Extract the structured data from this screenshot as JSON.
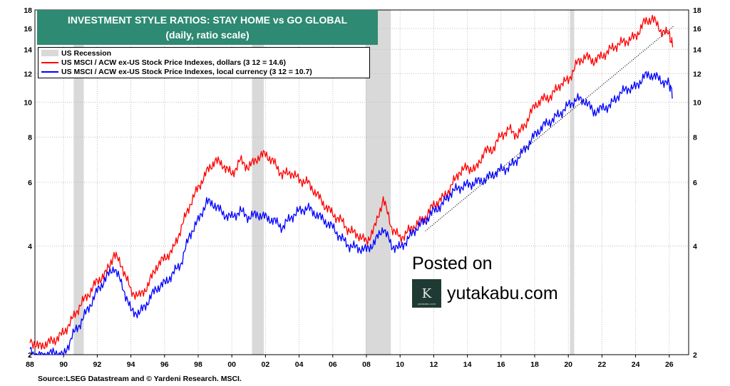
{
  "chart_data": {
    "type": "line",
    "title": "INVESTMENT STYLE RATIOS: STAY HOME vs GO GLOBAL",
    "subtitle": "(daily, ratio scale)",
    "y_scale": "log",
    "ylim": [
      2,
      18
    ],
    "xlim": [
      1988,
      2026.8
    ],
    "y_ticks": [
      2,
      4,
      6,
      8,
      10,
      12,
      14,
      16,
      18
    ],
    "x_ticks": [
      1988,
      1990,
      1992,
      1994,
      1996,
      1998,
      2000,
      2002,
      2004,
      2006,
      2008,
      2010,
      2012,
      2014,
      2016,
      2018,
      2020,
      2022,
      2024,
      2026
    ],
    "x_tick_labels": [
      "88",
      "90",
      "92",
      "94",
      "96",
      "98",
      "00",
      "02",
      "04",
      "06",
      "08",
      "10",
      "12",
      "14",
      "16",
      "18",
      "20",
      "22",
      "24",
      "26"
    ],
    "grid": true,
    "legend_position": "top-left",
    "recessions": [
      [
        1990.6,
        1991.2
      ],
      [
        2001.2,
        2001.9
      ],
      [
        2007.95,
        2009.45
      ],
      [
        2020.1,
        2020.35
      ]
    ],
    "recession_label": "US Recession",
    "series": [
      {
        "name": "US MSCI / ACW ex-US Stock Price Indexes, dollars (3 12 = 14.6)",
        "color": "#ff0000",
        "x": [
          1988.0,
          1988.5,
          1989.0,
          1989.5,
          1990.0,
          1990.5,
          1991.0,
          1991.5,
          1992.0,
          1992.5,
          1993.0,
          1993.5,
          1994.0,
          1994.5,
          1995.0,
          1995.5,
          1996.0,
          1996.5,
          1997.0,
          1997.5,
          1998.0,
          1998.5,
          1999.0,
          1999.5,
          2000.0,
          2000.5,
          2001.0,
          2001.5,
          2002.0,
          2002.5,
          2003.0,
          2003.5,
          2004.0,
          2004.5,
          2005.0,
          2005.5,
          2006.0,
          2006.5,
          2007.0,
          2007.5,
          2008.0,
          2008.5,
          2009.0,
          2009.5,
          2010.0,
          2010.5,
          2011.0,
          2011.5,
          2012.0,
          2012.5,
          2013.0,
          2013.5,
          2014.0,
          2014.5,
          2015.0,
          2015.5,
          2016.0,
          2016.5,
          2017.0,
          2017.5,
          2018.0,
          2018.5,
          2019.0,
          2019.5,
          2020.0,
          2020.5,
          2021.0,
          2021.5,
          2022.0,
          2022.5,
          2023.0,
          2023.5,
          2024.0,
          2024.5,
          2025.0,
          2025.5,
          2026.0,
          2026.2
        ],
        "values": [
          2.2,
          2.1,
          2.15,
          2.2,
          2.3,
          2.5,
          2.75,
          2.95,
          3.2,
          3.35,
          3.8,
          3.5,
          3.0,
          2.9,
          3.1,
          3.5,
          3.7,
          3.9,
          4.5,
          5.2,
          5.8,
          6.4,
          6.9,
          6.7,
          6.3,
          6.9,
          6.6,
          7.0,
          7.2,
          6.8,
          6.3,
          6.4,
          6.1,
          6.0,
          5.6,
          5.2,
          4.9,
          4.7,
          4.4,
          4.3,
          4.1,
          4.5,
          5.4,
          4.5,
          4.2,
          4.4,
          4.6,
          4.8,
          5.2,
          5.4,
          5.8,
          6.4,
          6.6,
          6.5,
          7.3,
          7.4,
          8.1,
          8.4,
          8.1,
          8.8,
          9.8,
          10.2,
          10.4,
          11.2,
          11.5,
          12.8,
          13.4,
          13.0,
          13.4,
          14.0,
          14.5,
          14.8,
          15.2,
          16.6,
          17.1,
          15.8,
          15.4,
          14.3
        ]
      },
      {
        "name": "US MSCI / ACW ex-US Stock Price Indexes, local currency (3 12 = 10.7)",
        "color": "#0000ff",
        "x": [
          1988.0,
          1988.5,
          1989.0,
          1989.5,
          1990.0,
          1990.5,
          1991.0,
          1991.5,
          1992.0,
          1992.5,
          1993.0,
          1993.5,
          1994.0,
          1994.5,
          1995.0,
          1995.5,
          1996.0,
          1996.5,
          1997.0,
          1997.5,
          1998.0,
          1998.5,
          1999.0,
          1999.5,
          2000.0,
          2000.5,
          2001.0,
          2001.5,
          2002.0,
          2002.5,
          2003.0,
          2003.5,
          2004.0,
          2004.5,
          2005.0,
          2005.5,
          2006.0,
          2006.5,
          2007.0,
          2007.5,
          2008.0,
          2008.5,
          2009.0,
          2009.5,
          2010.0,
          2010.5,
          2011.0,
          2011.5,
          2012.0,
          2012.5,
          2013.0,
          2013.5,
          2014.0,
          2014.5,
          2015.0,
          2015.5,
          2016.0,
          2016.5,
          2017.0,
          2017.5,
          2018.0,
          2018.5,
          2019.0,
          2019.5,
          2020.0,
          2020.5,
          2021.0,
          2021.5,
          2022.0,
          2022.5,
          2023.0,
          2023.5,
          2024.0,
          2024.5,
          2025.0,
          2025.5,
          2026.0,
          2026.2
        ],
        "values": [
          2.05,
          1.97,
          2.0,
          2.03,
          1.98,
          2.25,
          2.45,
          2.7,
          3.0,
          3.25,
          3.5,
          3.1,
          2.65,
          2.6,
          2.8,
          3.05,
          3.15,
          3.35,
          3.6,
          4.3,
          4.7,
          5.3,
          5.2,
          4.9,
          4.8,
          5.0,
          4.8,
          4.9,
          4.8,
          4.7,
          4.5,
          4.8,
          5.0,
          5.1,
          4.9,
          4.7,
          4.5,
          4.2,
          4.0,
          3.95,
          3.9,
          4.1,
          4.5,
          4.0,
          3.95,
          4.2,
          4.5,
          4.7,
          5.0,
          5.2,
          5.6,
          5.8,
          5.9,
          6.0,
          6.1,
          6.3,
          6.5,
          6.6,
          7.0,
          7.5,
          8.1,
          8.6,
          8.9,
          9.3,
          9.8,
          10.2,
          10.1,
          9.4,
          9.6,
          9.8,
          10.5,
          10.9,
          11.0,
          11.8,
          11.9,
          11.5,
          11.2,
          10.5
        ]
      }
    ],
    "trendline": {
      "style": "dotted",
      "color": "#000000",
      "x": [
        2011.5,
        2026.3
      ],
      "values": [
        4.4,
        16.3
      ]
    },
    "source": "Source:LSEG Datastream and © Yardeni Research. MSCI."
  },
  "legend": {
    "recession_label": "US Recession",
    "dollars_label": "US MSCI / ACW ex-US Stock Price Indexes, dollars (3 12 = 14.6)",
    "local_label": "US MSCI / ACW ex-US Stock Price Indexes, local currency (3 12 = 10.7)"
  },
  "watermark": {
    "posted_label": "Posted on",
    "site": "yutakabu.com",
    "logo_glyph": "K",
    "logo_sub": "yutakabu.com",
    "logo_icon": "yk-logo-icon"
  },
  "colors": {
    "title_bg": "#2e8a72",
    "recession": "#d9d9d9",
    "dollars": "#ff0000",
    "local": "#0000ff"
  }
}
